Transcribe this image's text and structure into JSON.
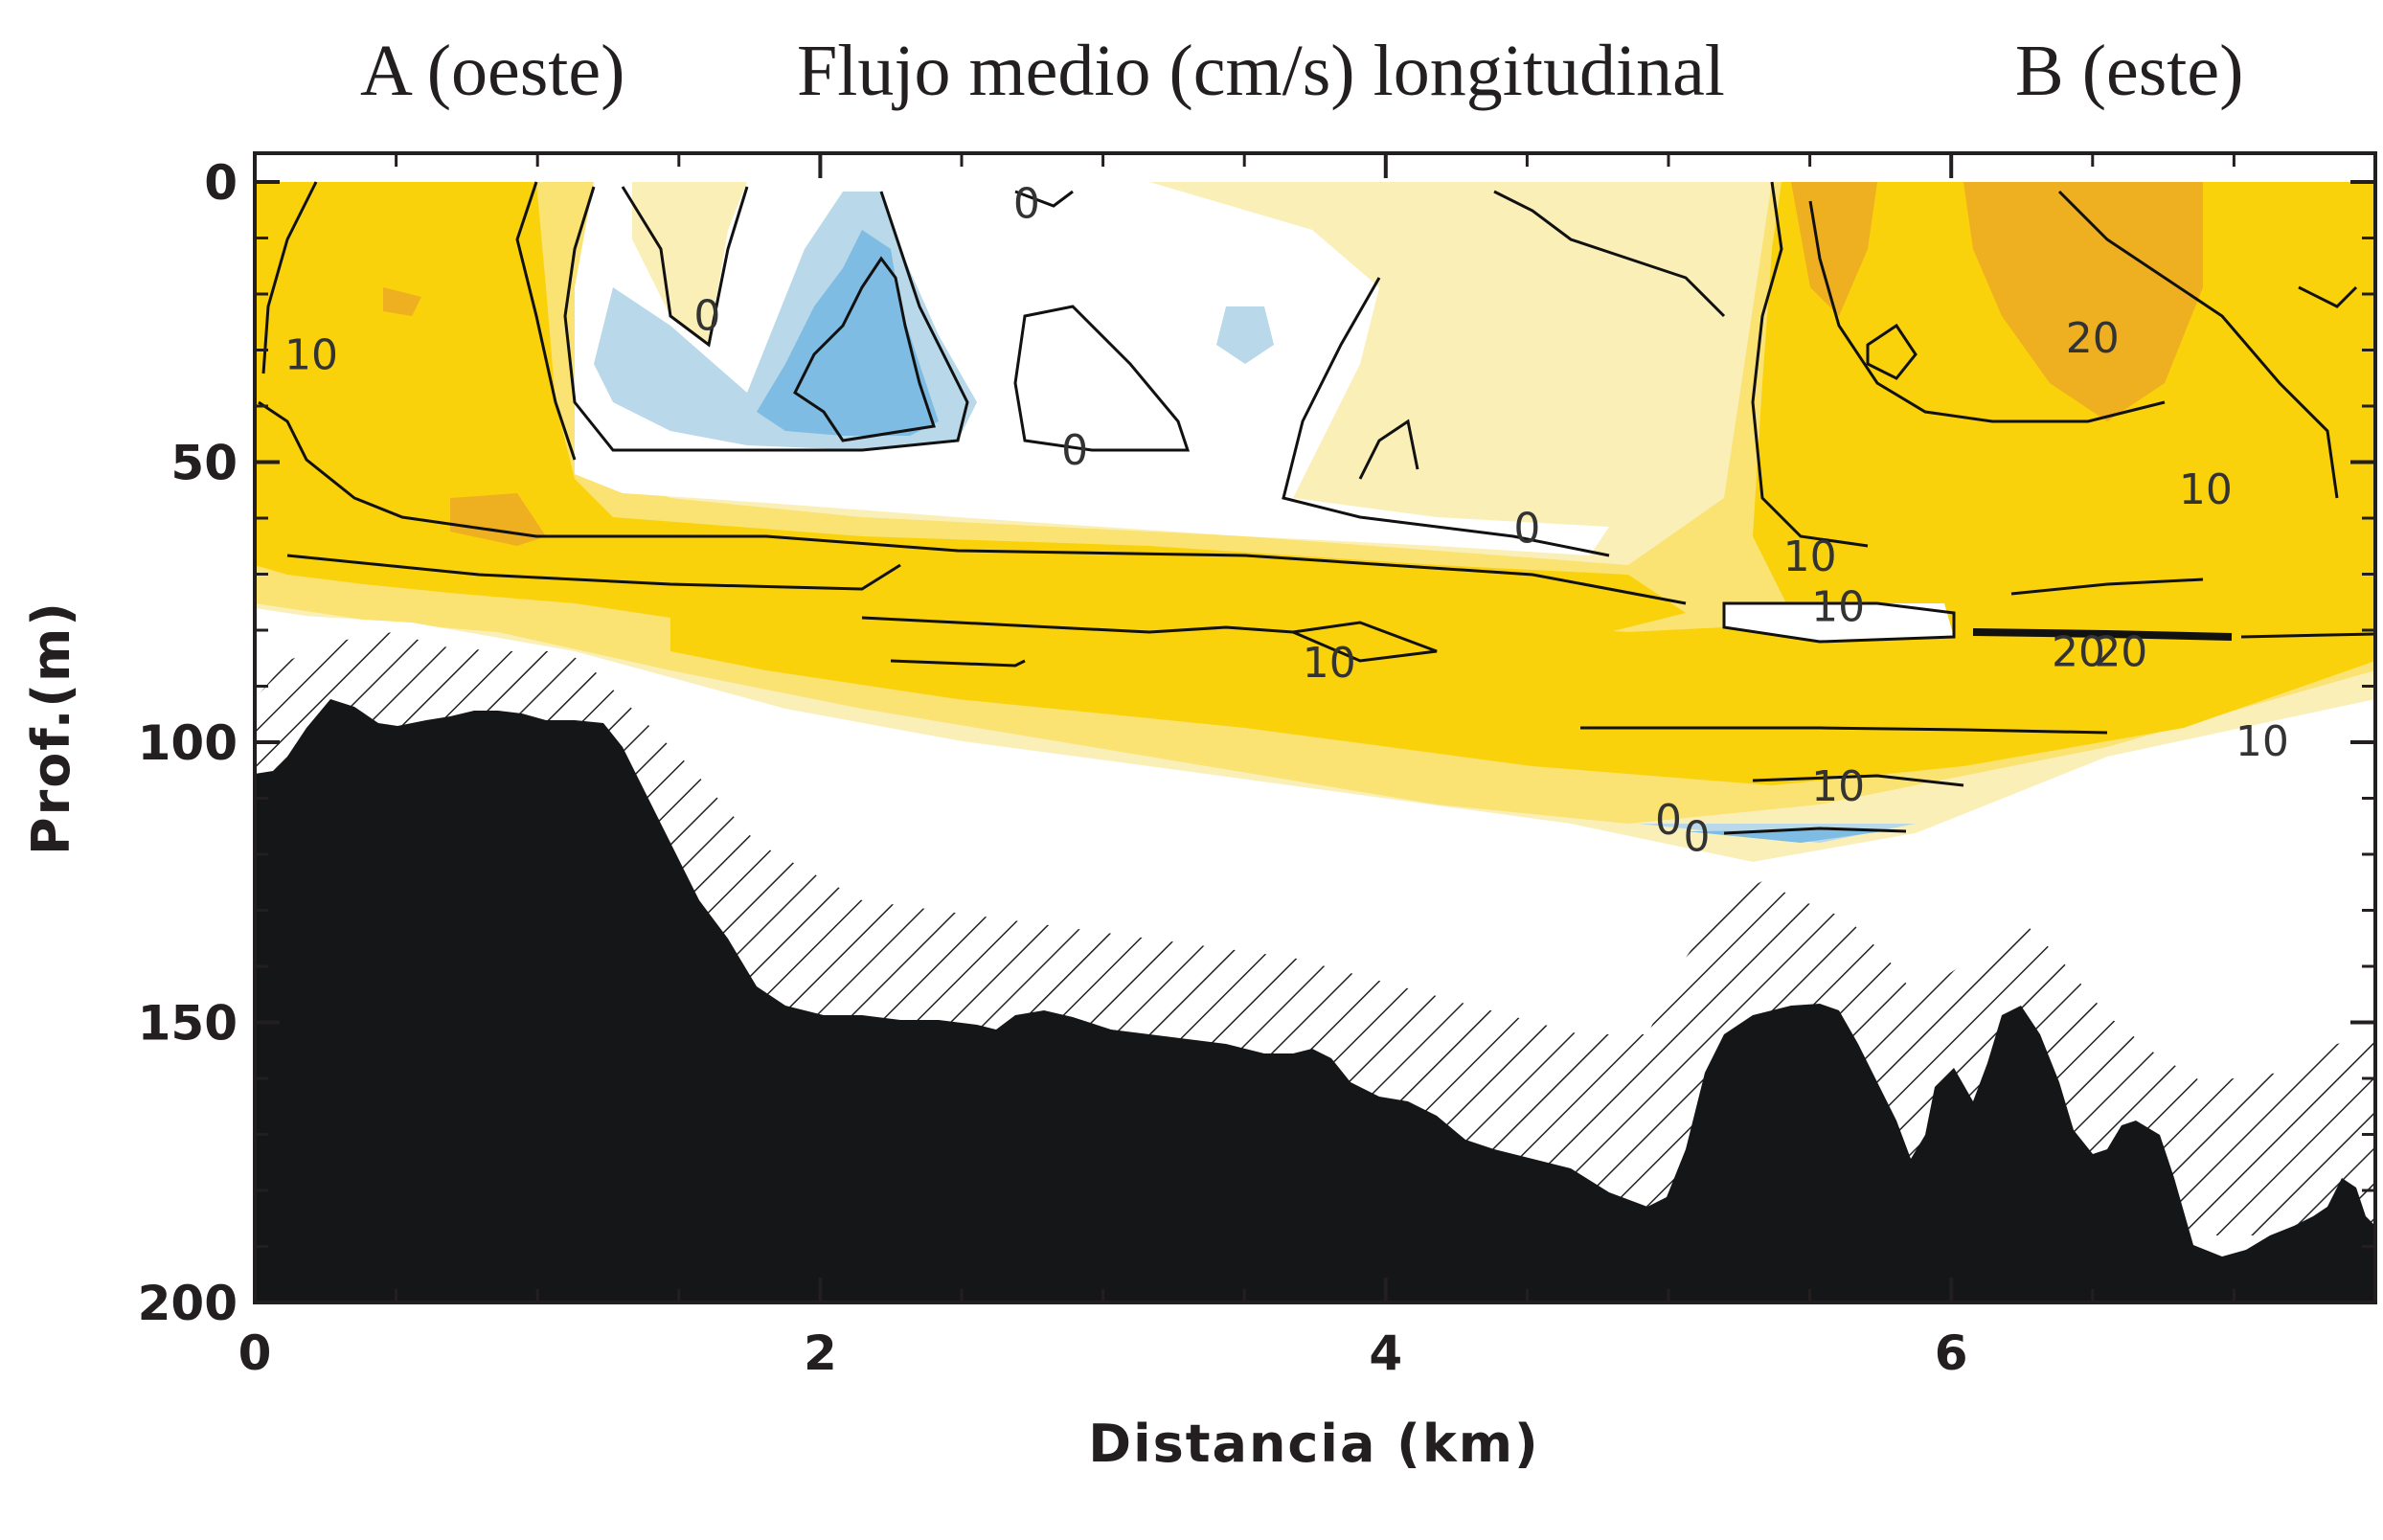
{
  "chart_data": {
    "type": "contour",
    "title": "Flujo medio (cm/s) longitudinal",
    "left_label": "A (oeste)",
    "right_label": "B (este)",
    "xlabel": "Distancia (km)",
    "ylabel": "Prof.(m)",
    "xlim": [
      0,
      7.5
    ],
    "ylim": [
      200,
      0
    ],
    "x_ticks": [
      0,
      2,
      4,
      6
    ],
    "y_ticks": [
      0,
      50,
      100,
      150,
      200
    ],
    "contour_levels": [
      -10,
      0,
      10,
      20,
      30
    ],
    "contour_labels": [
      {
        "text": "0",
        "x": 2.73,
        "y": 4
      },
      {
        "text": "10",
        "x": 0.2,
        "y": 31
      },
      {
        "text": "0",
        "x": 1.6,
        "y": 24
      },
      {
        "text": "0",
        "x": 2.9,
        "y": 48
      },
      {
        "text": "0",
        "x": 4.5,
        "y": 62
      },
      {
        "text": "10",
        "x": 5.5,
        "y": 67
      },
      {
        "text": "10",
        "x": 5.6,
        "y": 76
      },
      {
        "text": "10",
        "x": 3.8,
        "y": 86
      },
      {
        "text": "20",
        "x": 6.5,
        "y": 28
      },
      {
        "text": "10",
        "x": 6.9,
        "y": 55
      },
      {
        "text": "20",
        "x": 6.45,
        "y": 84
      },
      {
        "text": "20",
        "x": 6.6,
        "y": 84
      },
      {
        "text": "10",
        "x": 7.1,
        "y": 100
      },
      {
        "text": "10",
        "x": 5.6,
        "y": 108
      },
      {
        "text": "0",
        "x": 5.0,
        "y": 114
      },
      {
        "text": "0",
        "x": 5.1,
        "y": 117
      }
    ],
    "colors": {
      "strong_positive": "#eeaf20",
      "positive": "#f9d20c",
      "weak_positive": "#fae273",
      "pale_positive": "#fbefb8",
      "near_zero": "#ffffff",
      "weak_negative": "#b9d9ea",
      "negative": "#7fbce3",
      "seafloor": "#151617"
    }
  }
}
